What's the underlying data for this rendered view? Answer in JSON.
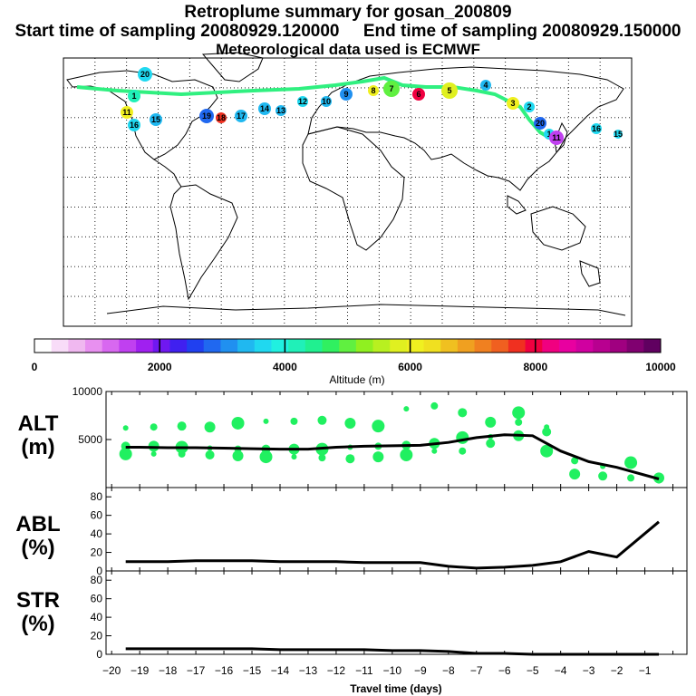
{
  "header": {
    "title": "Retroplume summary for gosan_200809",
    "sampling": "Start time of sampling 20080929.120000     End time of sampling 20080929.150000",
    "met": "Meteorological data used is ECMWF"
  },
  "map_labels": [
    "20",
    "1",
    "11",
    "16",
    "15",
    "19",
    "18",
    "17",
    "14",
    "13",
    "12",
    "10",
    "9",
    "8",
    "7",
    "6",
    "5",
    "4",
    "3",
    "2"
  ],
  "colorbar": {
    "label": "Altitude (m)",
    "ticks": [
      "0",
      "2000",
      "4000",
      "6000",
      "8000",
      "10000"
    ],
    "colors": [
      "#ffffff",
      "#f8dcf8",
      "#f0b8f0",
      "#e890f0",
      "#d868f0",
      "#c040f0",
      "#a020f0",
      "#7018f0",
      "#4020f0",
      "#2040f0",
      "#2068f0",
      "#2090f0",
      "#20b8f0",
      "#20d8f0",
      "#20f0e0",
      "#20f0b8",
      "#20f090",
      "#30f060",
      "#60f040",
      "#90f020",
      "#b8f020",
      "#e0f020",
      "#f0f020",
      "#f0e020",
      "#f0c020",
      "#f0a020",
      "#f08020",
      "#f06020",
      "#f03020",
      "#f00040",
      "#f00080",
      "#e800a0",
      "#d000a0",
      "#b80090",
      "#a00080",
      "#800070",
      "#600060"
    ]
  },
  "panels": {
    "alt": {
      "label1": "ALT",
      "label2": "(m)"
    },
    "abl": {
      "label1": "ABL",
      "label2": "(%)"
    },
    "str": {
      "label1": "STR",
      "label2": "(%)"
    }
  },
  "xaxis": {
    "label": "Travel time (days)",
    "ticks": [
      "−20",
      "−19",
      "−18",
      "−17",
      "−16",
      "−15",
      "−14",
      "−13",
      "−12",
      "−11",
      "−10",
      "−9",
      "−8",
      "−7",
      "−6",
      "−5",
      "−4",
      "−3",
      "−2",
      "−1"
    ]
  },
  "chart_data": [
    {
      "type": "line",
      "title": "ALT",
      "ylabel": "(m)",
      "xlabel": "Travel time (days)",
      "xlim": [
        -20.2,
        0.5
      ],
      "ylim": [
        0,
        10000
      ],
      "yticks": [
        5000,
        10000
      ],
      "x": [
        -19.5,
        -19,
        -18,
        -17,
        -16,
        -15,
        -14,
        -13,
        -12,
        -11,
        -10,
        -9,
        -8,
        -7,
        -6,
        -5,
        -4,
        -3,
        -2,
        -0.5
      ],
      "values": [
        4200,
        4200,
        4150,
        4150,
        4100,
        4050,
        4000,
        4000,
        4200,
        4300,
        4350,
        4400,
        4700,
        5200,
        5500,
        5400,
        3800,
        2700,
        2100,
        900
      ],
      "scatter": [
        {
          "x": -19.5,
          "y": 6200
        },
        {
          "x": -19.5,
          "y": 4300
        },
        {
          "x": -19.5,
          "y": 3500
        },
        {
          "x": -18.5,
          "y": 6300
        },
        {
          "x": -18.5,
          "y": 4300
        },
        {
          "x": -18.5,
          "y": 3500
        },
        {
          "x": -17.5,
          "y": 6400
        },
        {
          "x": -17.5,
          "y": 4200
        },
        {
          "x": -17.5,
          "y": 3500
        },
        {
          "x": -16.5,
          "y": 6300
        },
        {
          "x": -16.5,
          "y": 4100
        },
        {
          "x": -16.5,
          "y": 3400
        },
        {
          "x": -15.5,
          "y": 6700
        },
        {
          "x": -15.5,
          "y": 4000
        },
        {
          "x": -15.5,
          "y": 3300
        },
        {
          "x": -14.5,
          "y": 6900
        },
        {
          "x": -14.5,
          "y": 4000
        },
        {
          "x": -14.5,
          "y": 3200
        },
        {
          "x": -13.5,
          "y": 6900
        },
        {
          "x": -13.5,
          "y": 4000
        },
        {
          "x": -13.5,
          "y": 3200
        },
        {
          "x": -12.5,
          "y": 7000
        },
        {
          "x": -12.5,
          "y": 4000
        },
        {
          "x": -12.5,
          "y": 3100
        },
        {
          "x": -11.5,
          "y": 6700
        },
        {
          "x": -11.5,
          "y": 4200
        },
        {
          "x": -11.5,
          "y": 3000
        },
        {
          "x": -10.5,
          "y": 6400
        },
        {
          "x": -10.5,
          "y": 4300
        },
        {
          "x": -10.5,
          "y": 3200
        },
        {
          "x": -9.5,
          "y": 8200
        },
        {
          "x": -9.5,
          "y": 4400
        },
        {
          "x": -9.5,
          "y": 3400
        },
        {
          "x": -8.5,
          "y": 8500
        },
        {
          "x": -8.5,
          "y": 4600
        },
        {
          "x": -8.5,
          "y": 3800
        },
        {
          "x": -7.5,
          "y": 7800
        },
        {
          "x": -7.5,
          "y": 5200
        },
        {
          "x": -7.5,
          "y": 3800
        },
        {
          "x": -6.5,
          "y": 6800
        },
        {
          "x": -6.5,
          "y": 5300
        },
        {
          "x": -6.5,
          "y": 4600
        },
        {
          "x": -5.5,
          "y": 7800
        },
        {
          "x": -5.5,
          "y": 6800
        },
        {
          "x": -5.5,
          "y": 5400
        },
        {
          "x": -4.5,
          "y": 6300
        },
        {
          "x": -4.5,
          "y": 5800
        },
        {
          "x": -4.5,
          "y": 3800
        },
        {
          "x": -3.5,
          "y": 2800
        },
        {
          "x": -3.5,
          "y": 1400
        },
        {
          "x": -2.5,
          "y": 2200
        },
        {
          "x": -2.5,
          "y": 1200
        },
        {
          "x": -1.5,
          "y": 2600
        },
        {
          "x": -1.5,
          "y": 1000
        },
        {
          "x": -0.5,
          "y": 1000
        },
        {
          "x": -0.5,
          "y": 700
        }
      ]
    },
    {
      "type": "line",
      "title": "ABL",
      "ylabel": "(%)",
      "xlim": [
        -20.2,
        0.5
      ],
      "ylim": [
        0,
        90
      ],
      "yticks": [
        0,
        20,
        40,
        60,
        80
      ],
      "x": [
        -19.5,
        -19,
        -18,
        -17,
        -16,
        -15,
        -14,
        -13,
        -12,
        -11,
        -10,
        -9,
        -8,
        -7,
        -6,
        -5,
        -4,
        -3,
        -2,
        -0.5
      ],
      "values": [
        10,
        10,
        10,
        11,
        11,
        11,
        10,
        10,
        10,
        9,
        9,
        9,
        5,
        3,
        4,
        6,
        10,
        21,
        15,
        53
      ]
    },
    {
      "type": "line",
      "title": "STR",
      "ylabel": "(%)",
      "xlim": [
        -20.2,
        0.5
      ],
      "ylim": [
        0,
        90
      ],
      "yticks": [
        0,
        20,
        40,
        60,
        80
      ],
      "x": [
        -19.5,
        -19,
        -18,
        -17,
        -16,
        -15,
        -14,
        -13,
        -12,
        -11,
        -10,
        -9,
        -8,
        -7,
        -6,
        -5,
        -4,
        -3,
        -2,
        -0.5
      ],
      "values": [
        6,
        6,
        6,
        6,
        6,
        6,
        5,
        5,
        5,
        5,
        4,
        4,
        3,
        1,
        1,
        0,
        0,
        0,
        0,
        0
      ]
    }
  ]
}
